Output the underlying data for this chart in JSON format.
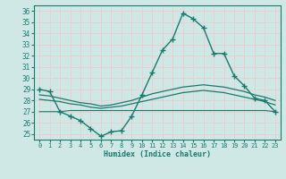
{
  "xlabel": "Humidex (Indice chaleur)",
  "xlim": [
    -0.5,
    23.5
  ],
  "ylim": [
    24.5,
    36.5
  ],
  "yticks": [
    25,
    26,
    27,
    28,
    29,
    30,
    31,
    32,
    33,
    34,
    35,
    36
  ],
  "xticks": [
    0,
    1,
    2,
    3,
    4,
    5,
    6,
    7,
    8,
    9,
    10,
    11,
    12,
    13,
    14,
    15,
    16,
    17,
    18,
    19,
    20,
    21,
    22,
    23
  ],
  "background_color": "#cfe8e6",
  "grid_color": "#e8d0d0",
  "line_color": "#1a7a6e",
  "lines": [
    {
      "x": [
        0,
        1,
        2,
        3,
        4,
        5,
        6,
        7,
        8,
        9,
        10,
        11,
        12,
        13,
        14,
        15,
        16,
        17,
        18,
        19,
        20,
        21,
        22,
        23
      ],
      "y": [
        29.0,
        28.8,
        27.0,
        26.6,
        26.2,
        25.5,
        24.8,
        25.2,
        25.3,
        26.6,
        28.5,
        30.5,
        32.5,
        33.5,
        35.8,
        35.3,
        34.5,
        32.2,
        32.2,
        30.2,
        29.3,
        28.2,
        28.0,
        27.0
      ],
      "marker": "+",
      "linewidth": 1.0,
      "markersize": 4
    },
    {
      "x": [
        0,
        1,
        2,
        3,
        4,
        5,
        6,
        7,
        8,
        9,
        10,
        11,
        12,
        13,
        14,
        15,
        16,
        17,
        18,
        19,
        20,
        21,
        22,
        23
      ],
      "y": [
        28.5,
        28.4,
        28.2,
        28.0,
        27.8,
        27.7,
        27.5,
        27.6,
        27.8,
        28.0,
        28.3,
        28.6,
        28.8,
        29.0,
        29.2,
        29.3,
        29.4,
        29.3,
        29.2,
        29.0,
        28.8,
        28.5,
        28.3,
        28.0
      ],
      "marker": null,
      "linewidth": 0.9,
      "markersize": 0
    },
    {
      "x": [
        0,
        1,
        2,
        3,
        4,
        5,
        6,
        7,
        8,
        9,
        10,
        11,
        12,
        13,
        14,
        15,
        16,
        17,
        18,
        19,
        20,
        21,
        22,
        23
      ],
      "y": [
        28.1,
        28.0,
        27.9,
        27.7,
        27.6,
        27.4,
        27.3,
        27.4,
        27.5,
        27.7,
        27.9,
        28.1,
        28.3,
        28.5,
        28.7,
        28.8,
        28.9,
        28.8,
        28.7,
        28.5,
        28.3,
        28.1,
        27.9,
        27.6
      ],
      "marker": null,
      "linewidth": 0.9,
      "markersize": 0
    },
    {
      "x": [
        0,
        1,
        2,
        3,
        4,
        5,
        6,
        7,
        8,
        9,
        10,
        11,
        12,
        13,
        14,
        15,
        16,
        17,
        18,
        19,
        20,
        21,
        22,
        23
      ],
      "y": [
        27.0,
        27.0,
        27.0,
        27.1,
        27.1,
        27.1,
        27.1,
        27.1,
        27.1,
        27.1,
        27.1,
        27.1,
        27.1,
        27.1,
        27.1,
        27.1,
        27.1,
        27.1,
        27.1,
        27.1,
        27.1,
        27.1,
        27.1,
        27.0
      ],
      "marker": null,
      "linewidth": 0.8,
      "markersize": 0
    }
  ]
}
